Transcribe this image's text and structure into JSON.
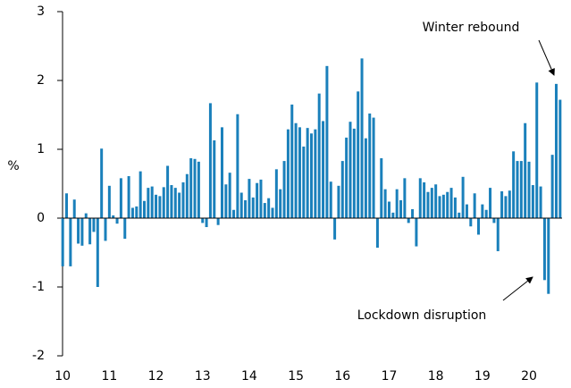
{
  "chart_data": {
    "type": "bar",
    "ylabel": "%",
    "color": "#1a80bb",
    "annotations": [
      "Winter rebound",
      "Lockdown disruption"
    ],
    "ylim": [
      -2,
      3
    ],
    "yticks": [
      -2,
      -1,
      0,
      1,
      2,
      3
    ],
    "categories": [
      "10",
      null,
      null,
      null,
      null,
      null,
      null,
      null,
      null,
      null,
      null,
      null,
      "11",
      null,
      null,
      null,
      null,
      null,
      null,
      null,
      null,
      null,
      null,
      null,
      "12",
      null,
      null,
      null,
      null,
      null,
      null,
      null,
      null,
      null,
      null,
      null,
      "13",
      null,
      null,
      null,
      null,
      null,
      null,
      null,
      null,
      null,
      null,
      null,
      "14",
      null,
      null,
      null,
      null,
      null,
      null,
      null,
      null,
      null,
      null,
      null,
      "15",
      null,
      null,
      null,
      null,
      null,
      null,
      null,
      null,
      null,
      null,
      null,
      "16",
      null,
      null,
      null,
      null,
      null,
      null,
      null,
      null,
      null,
      null,
      null,
      "17",
      null,
      null,
      null,
      null,
      null,
      null,
      null,
      null,
      null,
      null,
      null,
      "18",
      null,
      null,
      null,
      null,
      null,
      null,
      null,
      null,
      null,
      null,
      null,
      "19",
      null,
      null,
      null,
      null,
      null,
      null,
      null,
      null,
      null,
      null,
      null,
      "20",
      null,
      null,
      null,
      null,
      null,
      null,
      null,
      null
    ],
    "values": [
      -0.7,
      0.36,
      -0.7,
      0.27,
      -0.37,
      -0.4,
      0.07,
      -0.38,
      -0.2,
      -1.0,
      1.01,
      -0.33,
      0.47,
      0.04,
      -0.08,
      0.58,
      -0.3,
      0.61,
      0.15,
      0.17,
      0.68,
      0.25,
      0.44,
      0.46,
      0.34,
      0.32,
      0.45,
      0.76,
      0.48,
      0.44,
      0.37,
      0.52,
      0.64,
      0.87,
      0.86,
      0.82,
      -0.07,
      -0.13,
      1.67,
      1.13,
      -0.1,
      1.32,
      0.49,
      0.66,
      0.12,
      1.51,
      0.37,
      0.26,
      0.57,
      0.3,
      0.51,
      0.56,
      0.22,
      0.29,
      0.15,
      0.71,
      0.42,
      0.83,
      1.29,
      1.65,
      1.38,
      1.32,
      1.04,
      1.31,
      1.23,
      1.29,
      1.81,
      1.41,
      2.21,
      0.53,
      -0.31,
      0.47,
      0.83,
      1.17,
      1.4,
      1.3,
      1.84,
      2.32,
      1.16,
      1.52,
      1.46,
      -0.43,
      0.87,
      0.42,
      0.24,
      0.08,
      0.42,
      0.26,
      0.58,
      -0.07,
      0.13,
      -0.41,
      0.58,
      0.52,
      0.38,
      0.44,
      0.49,
      0.32,
      0.34,
      0.38,
      0.44,
      0.3,
      0.08,
      0.6,
      0.2,
      -0.12,
      0.36,
      -0.24,
      0.2,
      0.12,
      0.44,
      -0.07,
      -0.48,
      0.39,
      0.32,
      0.4,
      0.97,
      0.83,
      0.83,
      1.38,
      0.82,
      0.48,
      1.97,
      0.46,
      -0.9,
      -1.1,
      0.92,
      1.95,
      1.72
    ]
  }
}
